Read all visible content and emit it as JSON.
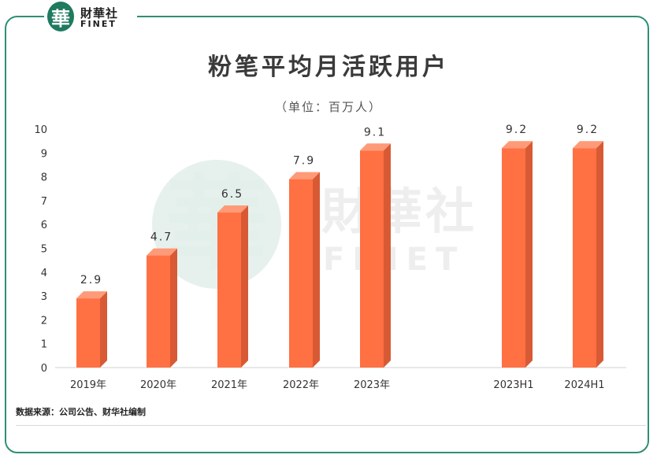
{
  "brand": {
    "logo_glyph": "華",
    "name_cn": "財華社",
    "name_en": "FINET",
    "color": "#1f7a5f"
  },
  "watermark": {
    "name_cn": "財華社",
    "name_en": "FINET",
    "logo_glyph": "華"
  },
  "unit_text": "（单位：百万人）",
  "source_text": "数据来源：公司公告、财华社编制",
  "chart_data": {
    "type": "bar",
    "title": "粉笔平均月活跃用户",
    "xlabel": "",
    "ylabel": "",
    "categories": [
      "2019年",
      "2020年",
      "2021年",
      "2022年",
      "2023年",
      "2023H1",
      "2024H1"
    ],
    "values": [
      2.9,
      4.7,
      6.5,
      7.9,
      9.1,
      9.2,
      9.2
    ],
    "data_labels": [
      "2.9",
      "4.7",
      "6.5",
      "7.9",
      "9.1",
      "9.2",
      "9.2"
    ],
    "y_ticks": [
      "0",
      "1",
      "2",
      "3",
      "4",
      "5",
      "6",
      "7",
      "8",
      "9",
      "10"
    ],
    "ylim": [
      0,
      10
    ],
    "grid": false,
    "legend": "none",
    "bar_color": "#ff7043",
    "bar_side_color": "#d85a34",
    "bar_top_color": "#ff9a78"
  }
}
